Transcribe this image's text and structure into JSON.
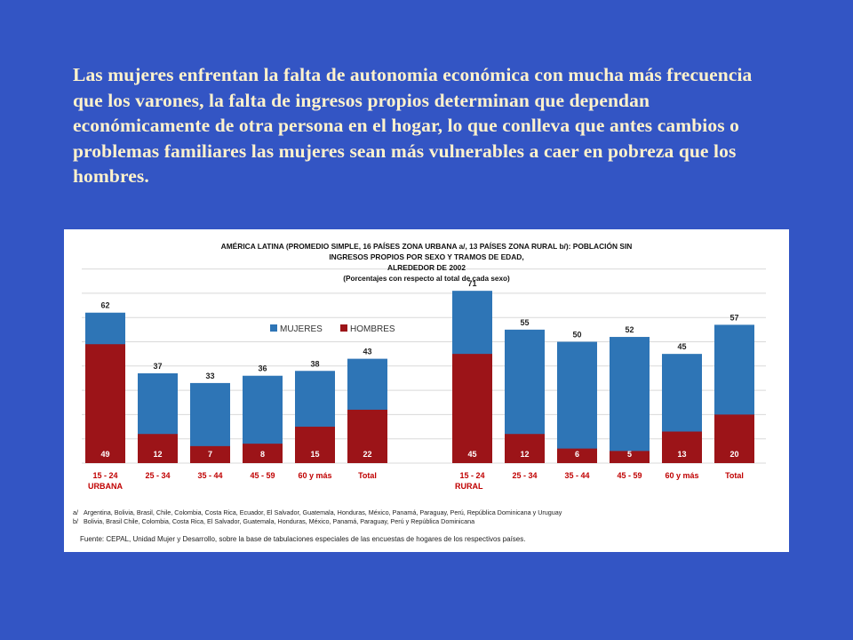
{
  "intro_text": "Las mujeres enfrentan la falta  de autonomia económica con mucha más frecuencia que los varones, la falta de ingresos propios determinan que dependan económicamente de otra persona en el hogar, lo que conlleva que antes cambios o problemas familiares  las mujeres sean más vulnerables a caer en pobreza que los hombres.",
  "chart_data": {
    "type": "bar",
    "stacking": "overlay",
    "title_lines": [
      "AMÉRICA LATINA (PROMEDIO SIMPLE, 16 PAÍSES ZONA URBANA a/,  13 PAÍSES ZONA RURAL b/): POBLACIÓN SIN",
      "INGRESOS PROPIOS  POR SEXO Y TRAMOS DE EDAD,",
      "ALREDEDOR DE 2002",
      "(Porcentajes con respecto al total de cada sexo)"
    ],
    "legend": {
      "position": "top-center",
      "items": [
        "MUJERES",
        "HOMBRES"
      ]
    },
    "colors": {
      "mujeres": "#2e75b6",
      "hombres": "#9c1418",
      "grid": "#d9d9d9"
    },
    "ylim": [
      0,
      80
    ],
    "grid": true,
    "groups": [
      {
        "zone": "URBANA",
        "categories": [
          "15 - 24",
          "25 - 34",
          "35 - 44",
          "45 - 59",
          "60 y más",
          "Total"
        ],
        "series": [
          {
            "name": "MUJERES",
            "values": [
              62,
              37,
              33,
              36,
              38,
              43
            ]
          },
          {
            "name": "HOMBRES",
            "values": [
              49,
              12,
              7,
              8,
              15,
              22
            ]
          }
        ]
      },
      {
        "zone": "RURAL",
        "categories": [
          "15 - 24",
          "25 - 34",
          "35 - 44",
          "45 - 59",
          "60 y más",
          "Total"
        ],
        "series": [
          {
            "name": "MUJERES",
            "values": [
              71,
              55,
              50,
              52,
              45,
              57
            ]
          },
          {
            "name": "HOMBRES",
            "values": [
              45,
              12,
              6,
              5,
              13,
              20
            ]
          }
        ]
      }
    ],
    "notes": [
      {
        "mark": "a/",
        "text": "Argentina, Bolivia, Brasil, Chile, Colombia, Costa Rica, Ecuador, El Salvador, Guatemala, Honduras, México, Panamá, Paraguay, Perú, República Dominicana y Uruguay"
      },
      {
        "mark": "b/",
        "text": "Bolivia, Brasil Chile, Colombia, Costa Rica, El Salvador, Guatemala, Honduras, México, Panamá, Paraguay, Perú y República Dominicana"
      }
    ],
    "source": "Fuente: CEPAL, Unidad Mujer y Desarrollo, sobre la base de tabulaciones especiales de las encuestas de hogares de los respectivos países."
  }
}
